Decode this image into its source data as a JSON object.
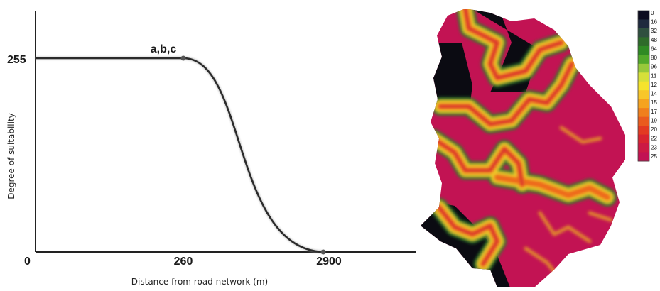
{
  "chart_data": [
    {
      "type": "line",
      "xlabel": "Distance from road network (m)",
      "ylabel": "Degree of suitability",
      "x_ticks": [
        "260",
        "2900"
      ],
      "y_ticks": [
        "0",
        "255"
      ],
      "points": [
        {
          "x": 0,
          "y": 255
        },
        {
          "x": 260,
          "y": 255
        },
        {
          "x": 2900,
          "y": 0
        }
      ],
      "annotations": [
        {
          "text": "a,b,c",
          "x": 260,
          "y": 255
        }
      ],
      "curve": "flat at 255 up to 260 m, sigmoidal decrease to 0 at 2900 m"
    },
    {
      "type": "heatmap",
      "colorbar_labels": [
        "0",
        "16",
        "32",
        "48",
        "64",
        "80",
        "96",
        "11",
        "12",
        "14",
        "15",
        "17",
        "19",
        "20",
        "22",
        "23",
        "25"
      ],
      "colorbar_colors": [
        "#0b0b1e",
        "#1f2a3e",
        "#2f4f3f",
        "#2e6b2a",
        "#2f8a24",
        "#52a92a",
        "#98c93a",
        "#d6e03a",
        "#f5e32c",
        "#f8c62a",
        "#f5a31f",
        "#f07f1c",
        "#ea5b1e",
        "#e33a22",
        "#d82430",
        "#cc1a44",
        "#c21353"
      ]
    }
  ],
  "colors": {
    "curve": "#2b2b2b",
    "map_background": "#c21353",
    "map_dark": "#0b0b12"
  }
}
